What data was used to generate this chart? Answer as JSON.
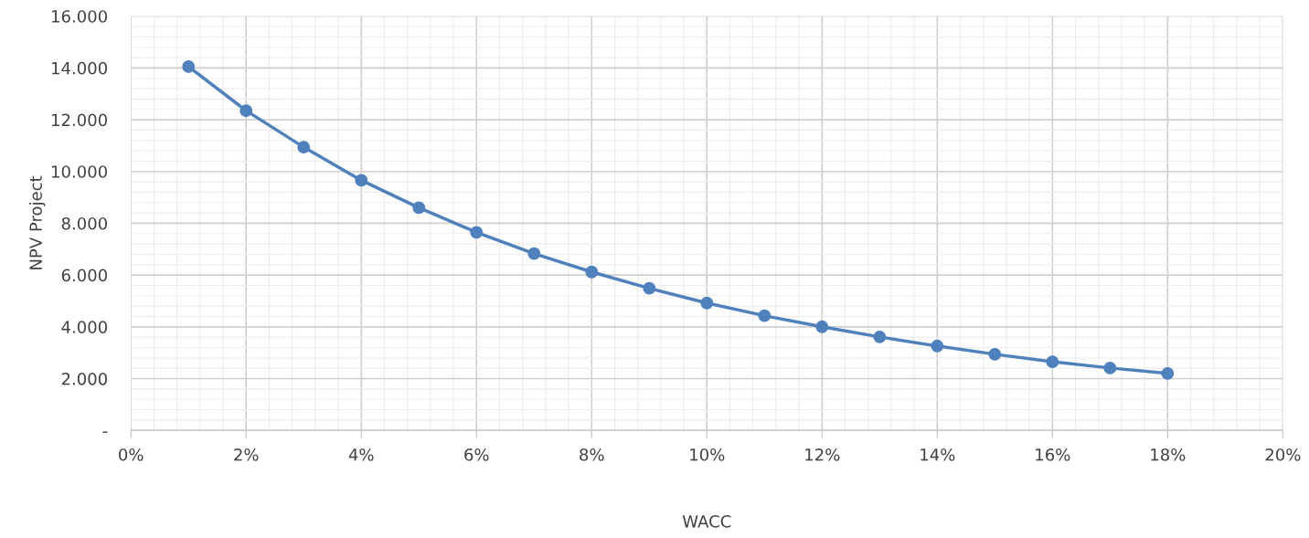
{
  "chart_data": {
    "type": "line",
    "xlabel": "WACC",
    "ylabel": "NPV Project",
    "x": [
      1,
      2,
      3,
      4,
      5,
      6,
      7,
      8,
      9,
      10,
      11,
      12,
      13,
      14,
      15,
      16,
      17,
      18
    ],
    "series": [
      {
        "color": "#4f81bd",
        "values": [
          14050,
          12350,
          10940,
          9660,
          8600,
          7650,
          6830,
          6120,
          5490,
          4920,
          4430,
          4000,
          3610,
          3260,
          2940,
          2650,
          2410,
          2200
        ]
      }
    ],
    "xlim": [
      0,
      20
    ],
    "xticks": [
      {
        "value": 0,
        "label": "0%"
      },
      {
        "value": 2,
        "label": "2%"
      },
      {
        "value": 4,
        "label": "4%"
      },
      {
        "value": 6,
        "label": "6%"
      },
      {
        "value": 8,
        "label": "8%"
      },
      {
        "value": 10,
        "label": "10%"
      },
      {
        "value": 12,
        "label": "12%"
      },
      {
        "value": 14,
        "label": "14%"
      },
      {
        "value": 16,
        "label": "16%"
      },
      {
        "value": 18,
        "label": "18%"
      },
      {
        "value": 20,
        "label": "20%"
      }
    ],
    "ylim": [
      0,
      16000
    ],
    "yticks": [
      {
        "value": 0,
        "label": "-"
      },
      {
        "value": 2000,
        "label": "2.000"
      },
      {
        "value": 4000,
        "label": "4.000"
      },
      {
        "value": 6000,
        "label": "6.000"
      },
      {
        "value": 8000,
        "label": "8.000"
      },
      {
        "value": 10000,
        "label": "10.000"
      },
      {
        "value": 12000,
        "label": "12.000"
      },
      {
        "value": 14000,
        "label": "14.000"
      },
      {
        "value": 16000,
        "label": "16.000"
      }
    ],
    "grid": true,
    "marker": "circle",
    "line_style": "solid"
  }
}
